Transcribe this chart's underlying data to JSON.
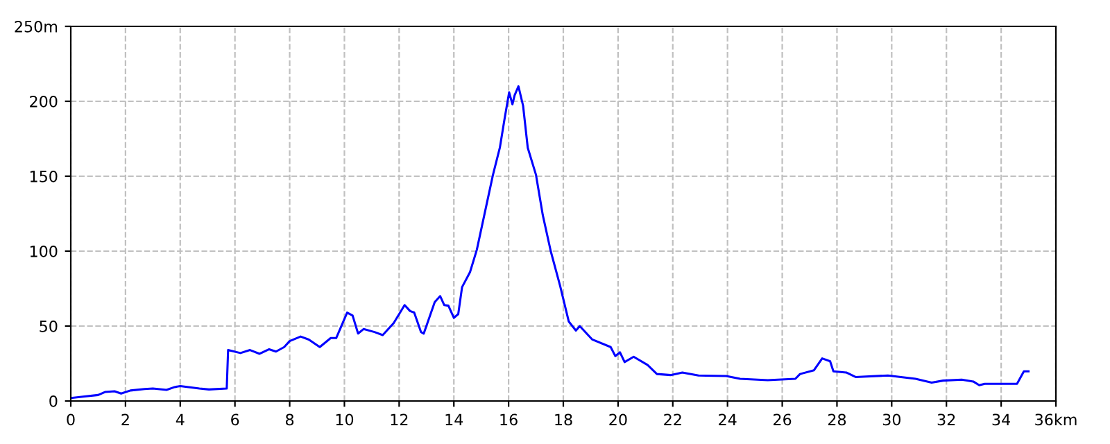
{
  "chart_data": {
    "type": "line",
    "xlim": [
      0,
      36
    ],
    "ylim": [
      0,
      250
    ],
    "xticks": [
      0,
      2,
      4,
      6,
      8,
      10,
      12,
      14,
      16,
      18,
      20,
      22,
      24,
      26,
      28,
      30,
      32,
      34,
      {
        "value": 36,
        "label": "36km"
      }
    ],
    "yticks": [
      0,
      50,
      100,
      150,
      200,
      {
        "value": 250,
        "label": "250m"
      }
    ],
    "grid": true,
    "marker": "none",
    "line_style": "solid",
    "series": [
      {
        "color": "#0000ff",
        "x": [
          0,
          0.5,
          1,
          1.25,
          1.6,
          1.84,
          2.18,
          2.7,
          3.0,
          3.5,
          3.8,
          4.0,
          4.7,
          5.05,
          5.7,
          5.75,
          6.2,
          6.55,
          6.9,
          7.25,
          7.5,
          7.8,
          8.0,
          8.4,
          8.7,
          9.1,
          9.5,
          9.7,
          10.1,
          10.3,
          10.5,
          10.7,
          11.1,
          11.4,
          11.8,
          12.2,
          12.4,
          12.55,
          12.8,
          12.9,
          13.3,
          13.5,
          13.65,
          13.8,
          14.0,
          14.16,
          14.3,
          14.59,
          14.84,
          15.17,
          15.43,
          15.68,
          15.85,
          16.02,
          16.14,
          16.22,
          16.36,
          16.53,
          16.7,
          17.0,
          17.25,
          17.54,
          17.88,
          18.2,
          18.46,
          18.6,
          19.06,
          19.73,
          19.9,
          20.07,
          20.24,
          20.57,
          21.08,
          21.42,
          21.92,
          22.35,
          22.94,
          23.95,
          24.46,
          25.47,
          26.48,
          26.65,
          27.16,
          27.46,
          27.75,
          27.87,
          28.34,
          28.68,
          29.86,
          30.87,
          31.46,
          31.88,
          32.56,
          32.98,
          33.2,
          33.4,
          34.58,
          34.83,
          35.0
        ],
        "values": [
          2,
          3,
          4,
          6,
          6.5,
          5,
          7,
          8,
          8.3,
          7.4,
          9.3,
          10,
          8.3,
          7.7,
          8.3,
          34,
          32,
          34,
          31.5,
          34.5,
          33,
          36,
          40,
          43,
          41,
          36,
          42,
          42,
          59,
          57,
          45,
          48,
          46,
          44,
          52,
          64,
          60,
          59,
          46,
          45,
          66,
          70,
          64,
          63.6,
          55.5,
          58,
          76,
          86,
          101,
          129,
          151,
          169,
          188,
          206,
          198,
          204,
          210,
          197,
          169,
          151,
          124,
          100,
          77,
          53,
          47,
          50,
          41,
          36,
          30,
          32.5,
          26,
          29.5,
          24,
          18,
          17.3,
          19,
          17,
          16.7,
          14.8,
          13.9,
          14.8,
          18,
          20.5,
          28.4,
          26.5,
          19.8,
          19,
          16,
          17,
          14.8,
          12.3,
          13.6,
          14.2,
          13,
          10.5,
          11.5,
          11.5,
          19.8,
          19.8
        ]
      }
    ]
  }
}
